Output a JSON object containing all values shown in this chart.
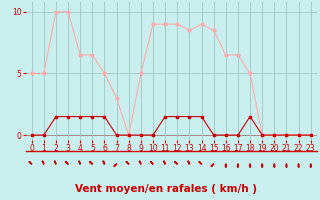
{
  "hours": [
    0,
    1,
    2,
    3,
    4,
    5,
    6,
    7,
    8,
    9,
    10,
    11,
    12,
    13,
    14,
    15,
    16,
    17,
    18,
    19,
    20,
    21,
    22,
    23
  ],
  "vent_moyen": [
    0,
    0,
    1.5,
    1.5,
    1.5,
    1.5,
    1.5,
    0,
    0,
    0,
    0,
    1.5,
    1.5,
    1.5,
    1.5,
    0,
    0,
    0,
    1.5,
    0,
    0,
    0,
    0,
    0
  ],
  "rafales": [
    5,
    5,
    10,
    10,
    6.5,
    6.5,
    5,
    3,
    0,
    5,
    9,
    9,
    9,
    8.5,
    9,
    8.5,
    6.5,
    6.5,
    5,
    0,
    0,
    0,
    0,
    0
  ],
  "line_color_moyen": "#cc0000",
  "line_color_rafales": "#ffaaaa",
  "bg_color": "#c8eeee",
  "grid_color": "#99bbbb",
  "xlabel": "Vent moyen/en rafales ( km/h )",
  "xlim": [
    -0.5,
    23.5
  ],
  "ylim": [
    -0.4,
    10.8
  ],
  "yticks": [
    0,
    5,
    10
  ],
  "xticks": [
    0,
    1,
    2,
    3,
    4,
    5,
    6,
    7,
    8,
    9,
    10,
    11,
    12,
    13,
    14,
    15,
    16,
    17,
    18,
    19,
    20,
    21,
    22,
    23
  ],
  "tick_fontsize": 5.5,
  "xlabel_fontsize": 7.5,
  "marker_size_moyen": 2.0,
  "marker_size_rafales": 2.0,
  "linewidth": 0.8,
  "arrow_angles": [
    225,
    202,
    202,
    225,
    202,
    225,
    202,
    315,
    225,
    202,
    225,
    202,
    225,
    202,
    225,
    315,
    0,
    0,
    0,
    0,
    0,
    0,
    0,
    0
  ]
}
